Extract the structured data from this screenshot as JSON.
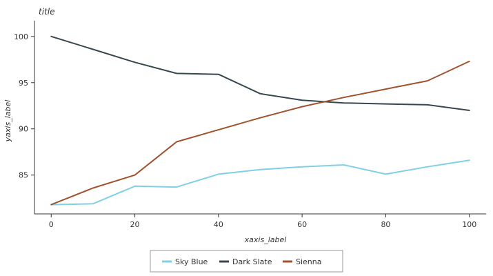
{
  "chart_data": {
    "type": "line",
    "title": "title",
    "xlabel": "xaxis_label",
    "ylabel": "yaxis_label",
    "xlim": [
      -4,
      104
    ],
    "ylim": [
      80.8,
      101.7
    ],
    "xticks": [
      0,
      20,
      40,
      60,
      80,
      100
    ],
    "yticks": [
      85,
      90,
      95,
      100
    ],
    "grid": false,
    "legend_position": "bottom",
    "series": [
      {
        "name": "Sky Blue",
        "color": "#7fcfe6",
        "x": [
          0,
          10,
          20,
          30,
          40,
          50,
          60,
          70,
          80,
          90,
          100
        ],
        "y": [
          81.8,
          81.9,
          83.8,
          83.7,
          85.1,
          85.6,
          85.9,
          86.1,
          85.1,
          85.9,
          86.6
        ]
      },
      {
        "name": "Dark Slate",
        "color": "#36474f",
        "x": [
          0,
          10,
          20,
          30,
          40,
          50,
          60,
          70,
          80,
          90,
          100
        ],
        "y": [
          100.0,
          98.6,
          97.2,
          96.0,
          95.9,
          93.8,
          93.1,
          92.8,
          92.7,
          92.6,
          92.0
        ]
      },
      {
        "name": "Sienna",
        "color": "#a0522d",
        "x": [
          0,
          10,
          20,
          30,
          40,
          50,
          60,
          70,
          80,
          90,
          100
        ],
        "y": [
          81.8,
          83.6,
          85.0,
          88.6,
          89.9,
          91.2,
          92.4,
          93.4,
          94.3,
          95.2,
          97.3
        ]
      }
    ]
  }
}
